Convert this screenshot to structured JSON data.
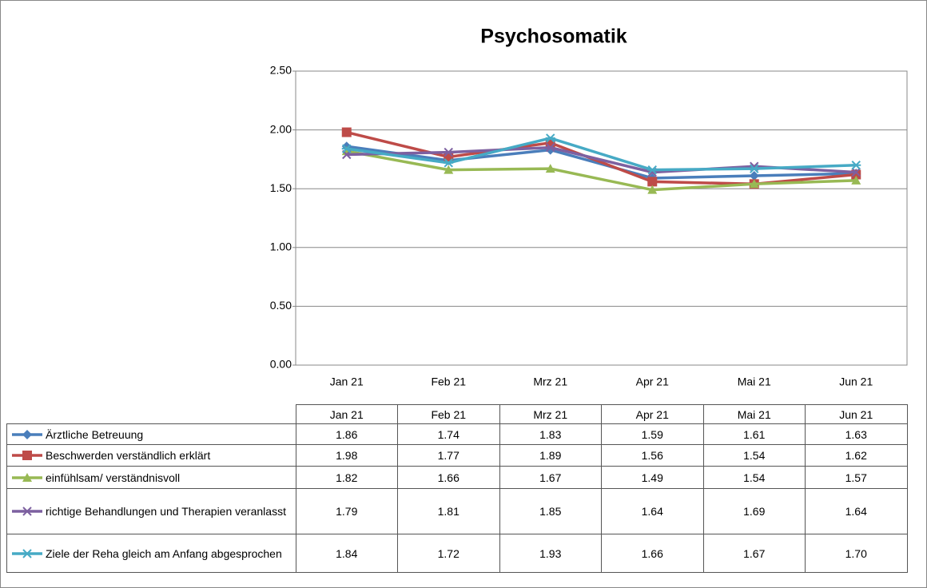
{
  "chart_data": {
    "type": "line",
    "title": "Psychosomatik",
    "categories": [
      "Jan 21",
      "Feb 21",
      "Mrz 21",
      "Apr 21",
      "Mai 21",
      "Jun 21"
    ],
    "ylim": [
      0,
      2.5
    ],
    "yticks": [
      {
        "value": 0,
        "label": "0.00"
      },
      {
        "value": 0.5,
        "label": "0.50"
      },
      {
        "value": 1,
        "label": "1.00"
      },
      {
        "value": 1.5,
        "label": "1.50"
      },
      {
        "value": 2,
        "label": "2.00"
      },
      {
        "value": 2.5,
        "label": "2.50"
      }
    ],
    "grid": true,
    "series": [
      {
        "name": "Ärztliche Betreuung",
        "color": "#4a7ebb",
        "marker": "diamond",
        "values": [
          1.86,
          1.74,
          1.83,
          1.59,
          1.61,
          1.63
        ],
        "value_labels": [
          "1.86",
          "1.74",
          "1.83",
          "1.59",
          "1.61",
          "1.63"
        ]
      },
      {
        "name": "Beschwerden verständlich erklärt",
        "color": "#be4b48",
        "marker": "square",
        "values": [
          1.98,
          1.77,
          1.89,
          1.56,
          1.54,
          1.62
        ],
        "value_labels": [
          "1.98",
          "1.77",
          "1.89",
          "1.56",
          "1.54",
          "1.62"
        ]
      },
      {
        "name": "einfühlsam/ verständnisvoll",
        "color": "#98b954",
        "marker": "triangle",
        "values": [
          1.82,
          1.66,
          1.67,
          1.49,
          1.54,
          1.57
        ],
        "value_labels": [
          "1.82",
          "1.66",
          "1.67",
          "1.49",
          "1.54",
          "1.57"
        ]
      },
      {
        "name": "richtige Behandlungen und Therapien veranlasst",
        "color": "#7d60a0",
        "marker": "x",
        "values": [
          1.79,
          1.81,
          1.85,
          1.64,
          1.69,
          1.64
        ],
        "value_labels": [
          "1.79",
          "1.81",
          "1.85",
          "1.64",
          "1.69",
          "1.64"
        ]
      },
      {
        "name": "Ziele der Reha gleich am Anfang abgesprochen",
        "color": "#46aac5",
        "marker": "star",
        "values": [
          1.84,
          1.72,
          1.93,
          1.66,
          1.67,
          1.7
        ],
        "value_labels": [
          "1.84",
          "1.72",
          "1.93",
          "1.66",
          "1.67",
          "1.70"
        ]
      }
    ]
  }
}
